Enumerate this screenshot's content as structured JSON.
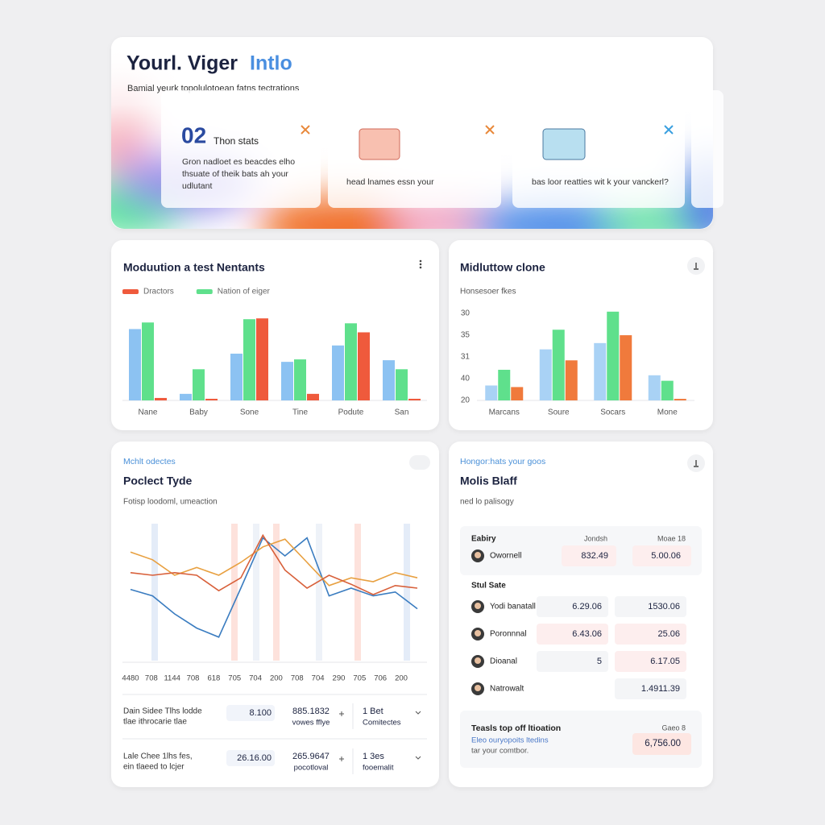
{
  "header": {
    "title": "Yourl. Viger",
    "title_accent": "Intlo",
    "subtitle": "Bamial yeurk topolulotoean fatns tectrations",
    "cards": [
      {
        "number": "02",
        "label": "Thon stats",
        "text": [
          "Gron nadloet es beacdes elho",
          "thsuate of theik bats ah your",
          "udlutant"
        ]
      },
      {
        "text": [
          "head lnames essn your"
        ]
      },
      {
        "text": [
          "bas loor reatties wit k your vanckerl?"
        ]
      }
    ]
  },
  "chart_data": [
    {
      "type": "bar",
      "title": "Moduution a test Nentants",
      "categories": [
        "Nane",
        "Baby",
        "Sone",
        "Tine",
        "Podute",
        "San"
      ],
      "series": [
        {
          "color": "#8cc2f2",
          "values": [
            87,
            8,
            57,
            47,
            67,
            49
          ]
        },
        {
          "name": "Nation of eiger",
          "color": "#5fe08c",
          "values": [
            95,
            38,
            99,
            50,
            94,
            38
          ]
        },
        {
          "name": "Dractors",
          "color": "#ef5a3c",
          "values": [
            3,
            2,
            100,
            8,
            83,
            2
          ]
        }
      ],
      "ylim": [
        0,
        110
      ]
    },
    {
      "type": "bar",
      "title": "Midluttow clone",
      "subtitle": "Honsesoer fkes",
      "y_labels": [
        "30",
        "35",
        "31",
        "40",
        "20"
      ],
      "categories": [
        "Marcans",
        "Soure",
        "Socars",
        "Mone"
      ],
      "series": [
        {
          "color": "#a9d2f5",
          "values": [
            19,
            65,
            73,
            32
          ]
        },
        {
          "color": "#5fe08c",
          "values": [
            39,
            90,
            113,
            25
          ]
        },
        {
          "color": "#f07a3c",
          "values": [
            17,
            51,
            83,
            2
          ]
        }
      ],
      "ylim": [
        0,
        120
      ]
    },
    {
      "type": "line",
      "pretitle": "Mchlt odectes",
      "title": "Poclect Tyde",
      "subtitle": "Fotisp loodoml, umeaction",
      "categories": [
        "4480",
        "708",
        "1144",
        "708",
        "618",
        "705",
        "704",
        "200",
        "708",
        "704",
        "290",
        "705",
        "706",
        "200"
      ],
      "series": [
        {
          "color": "#3a7cc0",
          "values": [
            49,
            44,
            30,
            19,
            12,
            50,
            89,
            75,
            89,
            44,
            50,
            44,
            47,
            34
          ]
        },
        {
          "color": "#e8a040",
          "values": [
            78,
            72,
            60,
            66,
            60,
            70,
            82,
            88,
            70,
            52,
            58,
            55,
            62,
            58
          ]
        },
        {
          "color": "#d8603a",
          "values": [
            62,
            60,
            62,
            60,
            48,
            58,
            91,
            64,
            50,
            60,
            53,
            45,
            52,
            50
          ]
        }
      ],
      "ylim": [
        0,
        100
      ]
    }
  ],
  "line_card_rows": [
    {
      "text": [
        "Dain Sidee Tlhs lodde",
        "tlae ithrocarie tlae"
      ],
      "value": "8.100",
      "stat": [
        "885.1832",
        "vowes fflye"
      ],
      "count": [
        "1 Bet",
        "Comitectes"
      ]
    },
    {
      "text": [
        "Lale Chee 1lhs fes,",
        "ein tlaeed to lcjer"
      ],
      "value": "26.16.00",
      "stat": [
        "265.9647",
        "pocotloval"
      ],
      "count": [
        "1 3es",
        "fooemalit"
      ]
    }
  ],
  "table_panel": {
    "pretitle": "Hongor:hats your goos",
    "title": "Molis Blaff",
    "subtitle": "ned lo palisogy",
    "top_header": [
      "Eabiry",
      "Jondsh",
      "Moae 18"
    ],
    "top_row": {
      "name": "Owornell",
      "values": [
        "832.49",
        "5.00.06"
      ]
    },
    "section": "Stul Sate",
    "rows": [
      {
        "name": "Yodi banatall",
        "values": [
          "6.29.06",
          "1530.06"
        ]
      },
      {
        "name": "Poronnnal",
        "values": [
          "6.43.06",
          "25.06"
        ]
      },
      {
        "name": "Dioanal",
        "values": [
          "5",
          "6.17.05"
        ]
      },
      {
        "name": "Natrowalt",
        "values": [
          "1.4911.39"
        ]
      }
    ],
    "footer": {
      "title": "Teasls top off ltioation",
      "text": [
        "Eleo ouryopoits ltedins",
        "tar your comtbor."
      ],
      "label": "Gaeo 8",
      "value": "6,756.00"
    }
  }
}
